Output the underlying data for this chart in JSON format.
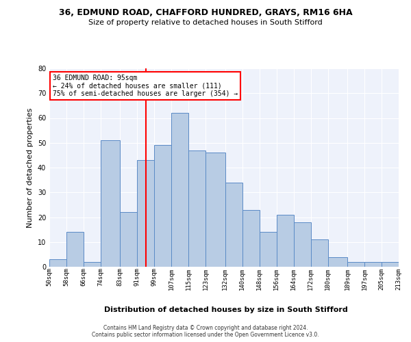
{
  "title1": "36, EDMUND ROAD, CHAFFORD HUNDRED, GRAYS, RM16 6HA",
  "title2": "Size of property relative to detached houses in South Stifford",
  "xlabel": "Distribution of detached houses by size in South Stifford",
  "ylabel": "Number of detached properties",
  "footer1": "Contains HM Land Registry data © Crown copyright and database right 2024.",
  "footer2": "Contains public sector information licensed under the Open Government Licence v3.0.",
  "annotation_title": "36 EDMUND ROAD: 95sqm",
  "annotation_line1": "← 24% of detached houses are smaller (111)",
  "annotation_line2": "75% of semi-detached houses are larger (354) →",
  "property_size": 95,
  "bar_color": "#b8cce4",
  "bar_edge_color": "#5a8ac6",
  "vline_color": "red",
  "background_color": "#eef2fb",
  "annotation_box_color": "white",
  "annotation_box_edge": "red",
  "bins": [
    50,
    58,
    66,
    74,
    83,
    91,
    99,
    107,
    115,
    123,
    132,
    140,
    148,
    156,
    164,
    172,
    180,
    189,
    197,
    205,
    213
  ],
  "counts": [
    3,
    14,
    2,
    51,
    22,
    43,
    49,
    62,
    47,
    46,
    34,
    23,
    14,
    21,
    18,
    11,
    4,
    2,
    2,
    2
  ],
  "ylim": [
    0,
    80
  ],
  "yticks": [
    0,
    10,
    20,
    30,
    40,
    50,
    60,
    70,
    80
  ],
  "title1_fontsize": 9,
  "title2_fontsize": 8,
  "ylabel_fontsize": 8,
  "xlabel_fontsize": 8,
  "tick_fontsize": 6.5,
  "ytick_fontsize": 7,
  "footer_fontsize": 5.5,
  "annotation_fontsize": 7
}
